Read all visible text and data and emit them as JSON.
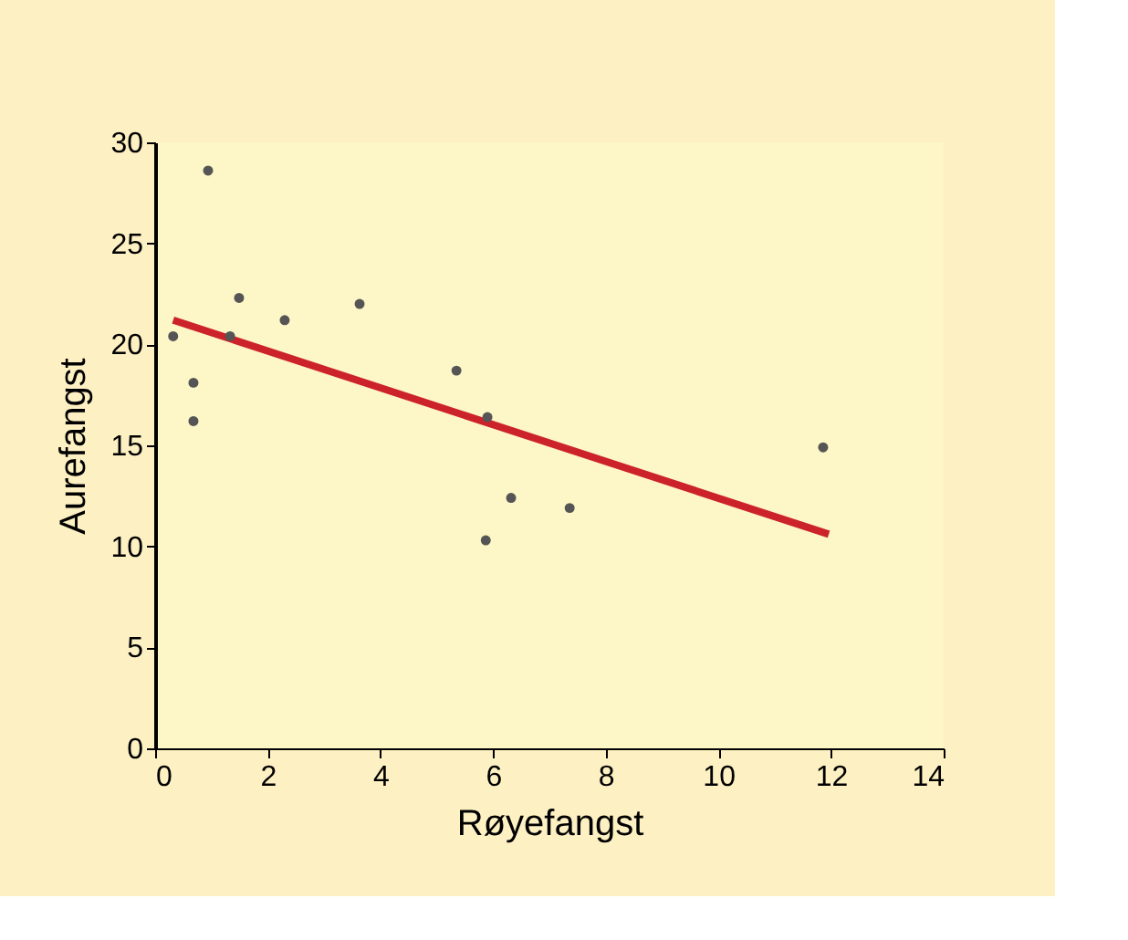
{
  "chart_data": {
    "type": "scatter",
    "xlabel": "Røyefangst",
    "ylabel": "Aurefangst",
    "xlim": [
      0,
      14
    ],
    "ylim": [
      0,
      30
    ],
    "xticks": [
      0,
      2,
      4,
      6,
      8,
      10,
      12,
      14
    ],
    "yticks": [
      0,
      5,
      10,
      15,
      20,
      25,
      30
    ],
    "grid": false,
    "series": [
      {
        "marker": "circle",
        "color": "#555555",
        "x": [
          0.32,
          0.94,
          0.68,
          0.68,
          1.33,
          1.49,
          2.3,
          3.63,
          5.35,
          5.9,
          5.87,
          6.32,
          7.36,
          11.86
        ],
        "values": [
          20.4,
          28.6,
          18.1,
          16.2,
          20.4,
          22.3,
          21.2,
          22.0,
          18.7,
          16.4,
          10.3,
          12.4,
          11.9,
          14.9
        ]
      },
      {
        "type": "line",
        "marker": "none",
        "color": "#cc2229",
        "line_style": "solid",
        "x": [
          0.32,
          11.96
        ],
        "values": [
          21.2,
          10.6
        ]
      }
    ]
  }
}
